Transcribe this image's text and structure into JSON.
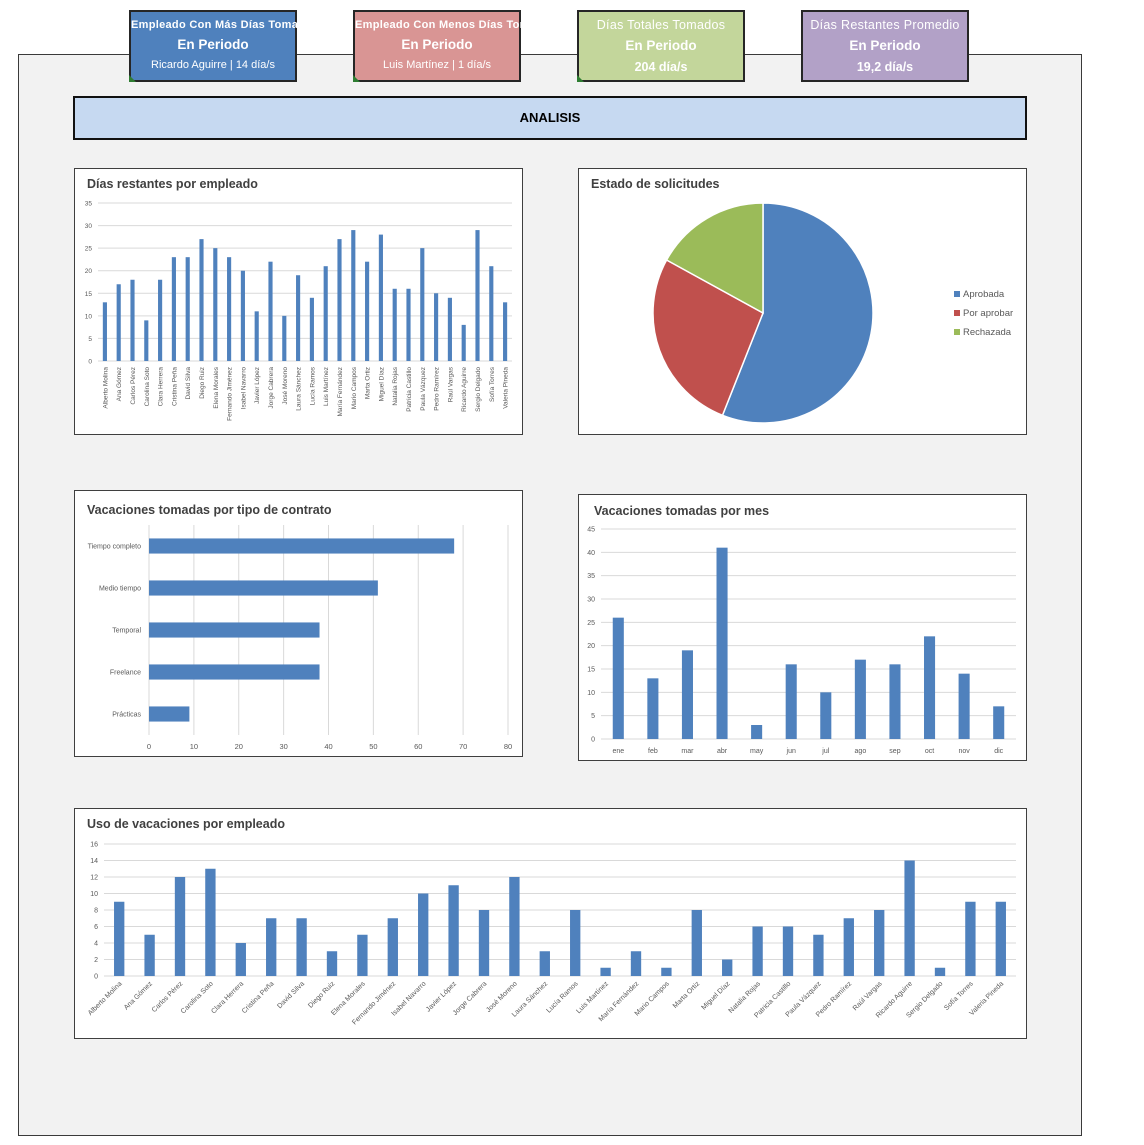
{
  "kpis": [
    {
      "title": "Empleado Con Más Días Tomados",
      "subtitle": "En Periodo",
      "value": "Ricardo Aguirre | 14 día/s",
      "color": "#4f81bd"
    },
    {
      "title": "Empleado Con Menos Días Tomados",
      "subtitle": "En Periodo",
      "value": "Luis Martínez | 1 día/s",
      "color": "#d99594"
    },
    {
      "title": "Días Totales Tomados",
      "subtitle": "En Periodo",
      "value": "204 día/s",
      "color": "#c3d69b"
    },
    {
      "title": "Días Restantes Promedio",
      "subtitle": "En Periodo",
      "value": "19,2 día/s",
      "color": "#b2a1c7"
    }
  ],
  "banner": "ANALISIS",
  "colors": {
    "bar": "#4f81bd",
    "pie": [
      "#4f81bd",
      "#c0504d",
      "#9bbb59"
    ]
  },
  "chart_data": [
    {
      "type": "bar",
      "title": "Días restantes por empleado",
      "categories": [
        "Alberto Molina",
        "Ana Gómez",
        "Carlos Pérez",
        "Carolina Soto",
        "Clara Herrera",
        "Cristina Peña",
        "David Silva",
        "Diego Ruiz",
        "Elena Morales",
        "Fernando Jiménez",
        "Isabel Navarro",
        "Javier López",
        "Jorge Cabrera",
        "José Moreno",
        "Laura Sánchez",
        "Lucía Ramos",
        "Luis Martínez",
        "María Fernández",
        "Mario Campos",
        "Marta Ortiz",
        "Miguel Díaz",
        "Natalia Rojas",
        "Patricia Castillo",
        "Paula Vázquez",
        "Pedro Ramírez",
        "Raúl Vargas",
        "Ricardo Aguirre",
        "Sergio Delgado",
        "Sofía Torres",
        "Valeria Pineda"
      ],
      "values": [
        13,
        17,
        18,
        9,
        18,
        23,
        23,
        27,
        25,
        23,
        20,
        11,
        22,
        10,
        19,
        14,
        21,
        27,
        29,
        22,
        28,
        16,
        16,
        25,
        15,
        14,
        8,
        29,
        21,
        13
      ],
      "yticks": [
        0,
        5,
        10,
        15,
        20,
        25,
        30,
        35
      ],
      "ylim": [
        0,
        35
      ],
      "grid": true
    },
    {
      "type": "pie",
      "title": "Estado de solicitudes",
      "labels": [
        "Aprobada",
        "Por aprobar",
        "Rechazada"
      ],
      "values": [
        56,
        27,
        17
      ],
      "legend": "right"
    },
    {
      "type": "bar",
      "orientation": "horizontal",
      "title": "Vacaciones tomadas por tipo de contrato",
      "categories": [
        "Tiempo completo",
        "Medio tiempo",
        "Temporal",
        "Freelance",
        "Prácticas"
      ],
      "values": [
        68,
        51,
        38,
        38,
        9
      ],
      "xticks": [
        0,
        10,
        20,
        30,
        40,
        50,
        60,
        70,
        80
      ],
      "xlim": [
        0,
        80
      ],
      "grid": true
    },
    {
      "type": "bar",
      "title": "Vacaciones tomadas por mes",
      "categories": [
        "ene",
        "feb",
        "mar",
        "abr",
        "may",
        "jun",
        "jul",
        "ago",
        "sep",
        "oct",
        "nov",
        "dic"
      ],
      "values": [
        26,
        13,
        19,
        41,
        3,
        16,
        10,
        17,
        16,
        22,
        14,
        7
      ],
      "yticks": [
        0,
        5,
        10,
        15,
        20,
        25,
        30,
        35,
        40,
        45
      ],
      "ylim": [
        0,
        45
      ],
      "grid": true
    },
    {
      "type": "bar",
      "title": "Uso de vacaciones por empleado",
      "categories": [
        "Alberto Molina",
        "Ana Gómez",
        "Carlos Pérez",
        "Carolina Soto",
        "Clara Herrera",
        "Cristina Peña",
        "David Silva",
        "Diego Ruiz",
        "Elena Morales",
        "Fernando Jiménez",
        "Isabel Navarro",
        "Javier López",
        "Jorge Cabrera",
        "José Moreno",
        "Laura Sánchez",
        "Lucía Ramos",
        "Luis Martínez",
        "María Fernández",
        "Mario Campos",
        "Marta Ortiz",
        "Miguel Díaz",
        "Natalia Rojas",
        "Patricia Castillo",
        "Paula Vázquez",
        "Pedro Ramírez",
        "Raúl Vargas",
        "Ricardo Aguirre",
        "Sergio Delgado",
        "Sofía Torres",
        "Valeria Pineda"
      ],
      "values": [
        9,
        5,
        12,
        13,
        4,
        7,
        7,
        3,
        5,
        7,
        10,
        11,
        8,
        12,
        3,
        8,
        1,
        3,
        1,
        8,
        2,
        6,
        6,
        5,
        7,
        8,
        14,
        1,
        9,
        9
      ],
      "yticks": [
        0,
        2,
        4,
        6,
        8,
        10,
        12,
        14,
        16
      ],
      "ylim": [
        0,
        16
      ],
      "grid": true
    }
  ]
}
